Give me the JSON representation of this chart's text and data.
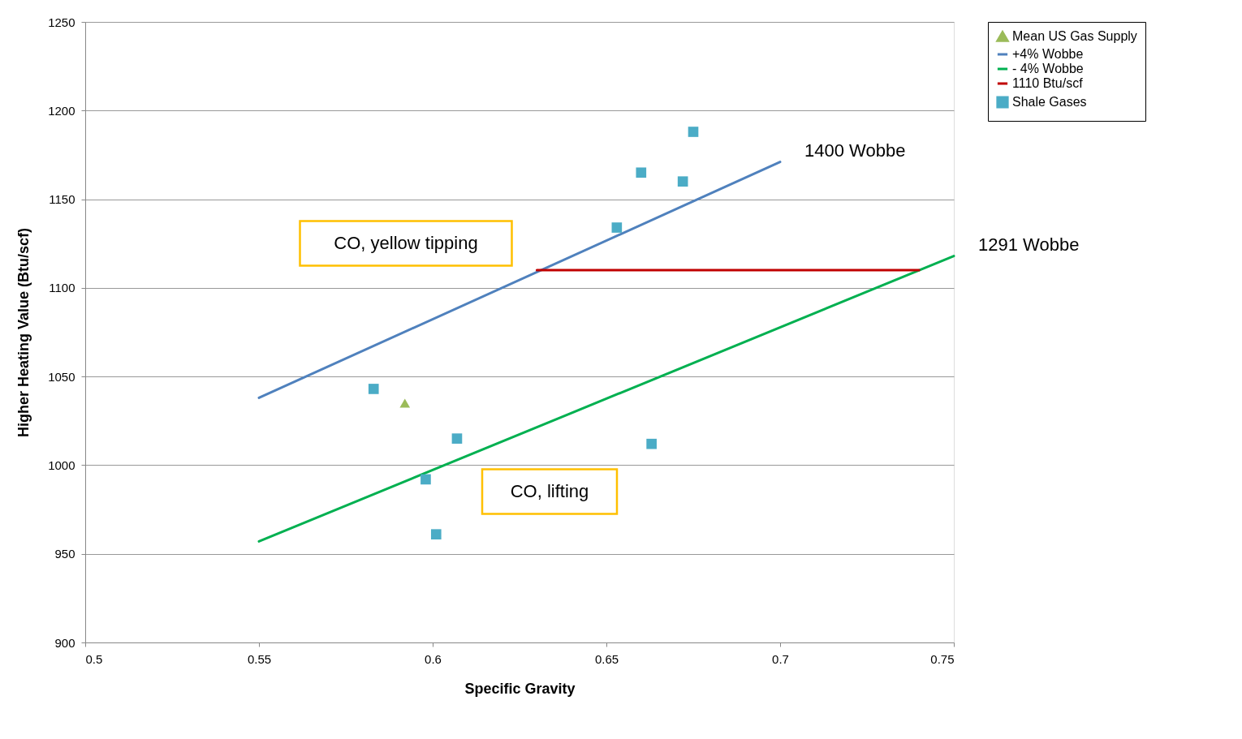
{
  "chart_data": {
    "type": "line",
    "xlabel": "Specific Gravity",
    "ylabel": "Higher Heating Value (Btu/scf)",
    "xlim": [
      0.5,
      0.75
    ],
    "xticks": [
      0.5,
      0.55,
      0.6,
      0.65,
      0.7,
      0.75
    ],
    "ylim": [
      900,
      1250
    ],
    "yticks": [
      900,
      950,
      1000,
      1050,
      1100,
      1150,
      1200,
      1250
    ],
    "grid": "y",
    "legend": "right",
    "series": [
      {
        "name": "Mean US Gas Supply",
        "type": "scatter",
        "marker": "triangle",
        "color": "#9bbb59",
        "x": [
          0.592
        ],
        "values": [
          1035
        ]
      },
      {
        "name": "+4% Wobbe",
        "marker": "none",
        "color": "#4f81bd",
        "x": [
          0.55,
          0.7
        ],
        "values": [
          1038,
          1171
        ]
      },
      {
        "name": "- 4% Wobbe",
        "marker": "none",
        "color": "#00b050",
        "x": [
          0.55,
          0.75
        ],
        "values": [
          957,
          1118
        ]
      },
      {
        "name": "1110 Btu/scf",
        "marker": "none",
        "color": "#c00000",
        "x": [
          0.63,
          0.74
        ],
        "values": [
          1110,
          1110
        ]
      },
      {
        "name": "Shale Gases",
        "type": "scatter",
        "marker": "square",
        "color": "#4bacc6",
        "x": [
          0.583,
          0.607,
          0.598,
          0.601,
          0.653,
          0.66,
          0.672,
          0.675,
          0.663
        ],
        "values": [
          1043,
          1015,
          992,
          961,
          1134,
          1165,
          1160,
          1188,
          1012
        ]
      }
    ],
    "annotations": [
      {
        "text": "1400 Wobbe",
        "x": 0.7,
        "y": 1171
      },
      {
        "text": "1291 Wobbe",
        "x": 0.75,
        "y": 1118
      },
      "CO, yellow tipping",
      "CO, lifting"
    ]
  }
}
